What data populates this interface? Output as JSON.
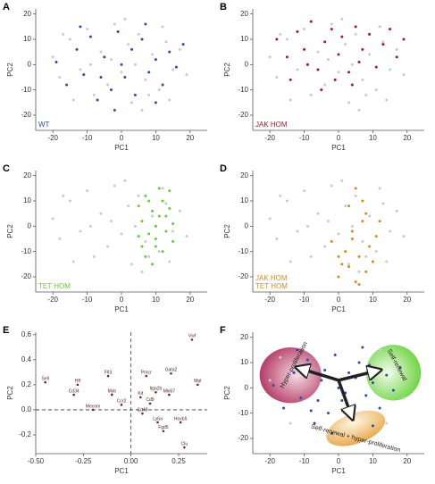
{
  "chart_data": [
    {
      "type": "scatter",
      "panel": "A",
      "xlabel": "PC1",
      "ylabel": "PC2",
      "xlim": [
        -25,
        25
      ],
      "ylim": [
        -26,
        22
      ],
      "xticks": [
        -20,
        -10,
        0,
        10,
        20
      ],
      "yticks": [
        -20,
        -10,
        0,
        10,
        20
      ],
      "legend": "lower left",
      "series": [
        {
          "color": "#c5cad3",
          "x": [
            -20,
            -18,
            -15,
            -12,
            -10,
            -8,
            -6,
            -4,
            -2,
            0,
            2,
            3,
            5,
            7,
            9,
            11,
            13,
            15,
            17,
            19,
            -14,
            -3,
            6,
            12,
            -9,
            1,
            8,
            -17,
            14,
            4
          ],
          "values": [
            3,
            -5,
            10,
            -2,
            14,
            -12,
            5,
            -8,
            16,
            -3,
            8,
            -15,
            12,
            -6,
            4,
            -10,
            9,
            -2,
            6,
            -4,
            -14,
            2,
            -18,
            15,
            0,
            18,
            -12,
            12,
            -14,
            0
          ]
        },
        {
          "name": "WT",
          "color": "#2a4fa8",
          "x": [
            -19,
            -16,
            -13,
            -11,
            -9,
            -7,
            -5,
            -3,
            -1,
            1,
            3,
            4,
            6,
            8,
            10,
            12,
            14,
            16,
            18,
            -12,
            -2,
            7,
            0,
            -6,
            10
          ],
          "values": [
            1,
            -8,
            6,
            -4,
            11,
            -14,
            3,
            -10,
            13,
            -5,
            6,
            -12,
            10,
            -3,
            2,
            -8,
            5,
            -1,
            8,
            15,
            -18,
            16,
            0,
            -5,
            -15
          ]
        }
      ]
    },
    {
      "type": "scatter",
      "panel": "B",
      "xlabel": "PC1",
      "ylabel": "PC2",
      "xlim": [
        -25,
        25
      ],
      "ylim": [
        -26,
        22
      ],
      "xticks": [
        -20,
        -10,
        0,
        10,
        20
      ],
      "yticks": [
        -20,
        -10,
        0,
        10,
        20
      ],
      "legend": "lower left",
      "series": [
        {
          "color": "#c5cad3",
          "x": [
            -20,
            -18,
            -15,
            -12,
            -10,
            -8,
            -6,
            -4,
            -2,
            0,
            2,
            3,
            5,
            7,
            9,
            11,
            13,
            15,
            17,
            19,
            -14,
            -3,
            6,
            12,
            -9,
            1,
            8,
            -17,
            14,
            4
          ],
          "values": [
            3,
            -5,
            10,
            -2,
            14,
            -12,
            5,
            -8,
            16,
            -3,
            8,
            -15,
            12,
            -6,
            4,
            -10,
            9,
            -2,
            6,
            -4,
            -14,
            2,
            -18,
            15,
            0,
            18,
            -12,
            12,
            -14,
            0
          ]
        },
        {
          "name": "JAK HOM",
          "color": "#a3192d",
          "x": [
            -18,
            -15,
            -12,
            -10,
            -8,
            -6,
            -4,
            -2,
            0,
            1,
            3,
            5,
            7,
            9,
            11,
            13,
            15,
            17,
            -14,
            -5,
            4,
            19,
            -9,
            6,
            -1
          ],
          "values": [
            10,
            3,
            13,
            6,
            17,
            -2,
            9,
            14,
            4,
            11,
            -3,
            15,
            6,
            12,
            -1,
            8,
            14,
            3,
            -6,
            -10,
            -8,
            10,
            0,
            1,
            -6
          ]
        }
      ]
    },
    {
      "type": "scatter",
      "panel": "C",
      "xlabel": "PC1",
      "ylabel": "PC2",
      "xlim": [
        -25,
        25
      ],
      "ylim": [
        -26,
        22
      ],
      "xticks": [
        -20,
        -10,
        0,
        10,
        20
      ],
      "yticks": [
        -20,
        -10,
        0,
        10,
        20
      ],
      "legend": "lower left",
      "series": [
        {
          "color": "#c5cad3",
          "x": [
            -20,
            -18,
            -15,
            -12,
            -10,
            -8,
            -6,
            -4,
            -2,
            0,
            2,
            3,
            5,
            7,
            9,
            11,
            13,
            15,
            17,
            19,
            -14,
            -3,
            6,
            12,
            -9,
            1,
            8,
            -17,
            14,
            4
          ],
          "values": [
            3,
            -5,
            10,
            -2,
            14,
            -12,
            5,
            -8,
            16,
            -3,
            8,
            -15,
            12,
            -6,
            4,
            -10,
            9,
            -2,
            6,
            -4,
            -14,
            2,
            -18,
            15,
            0,
            18,
            -12,
            12,
            -14,
            0
          ]
        },
        {
          "name": "TET HOM",
          "color": "#66cc33",
          "x": [
            5,
            6,
            7,
            8,
            9,
            10,
            11,
            12,
            13,
            14,
            15,
            6,
            8,
            10,
            12,
            14,
            7,
            9,
            11,
            13,
            15,
            10,
            5
          ],
          "values": [
            8,
            2,
            12,
            -3,
            6,
            -8,
            4,
            10,
            -2,
            7,
            -6,
            -8,
            10,
            0,
            -10,
            14,
            -12,
            -15,
            15,
            4,
            1,
            -5,
            -4
          ]
        }
      ]
    },
    {
      "type": "scatter",
      "panel": "D",
      "xlabel": "PC1",
      "ylabel": "PC2",
      "xlim": [
        -25,
        25
      ],
      "ylim": [
        -26,
        22
      ],
      "xticks": [
        -20,
        -10,
        0,
        10,
        20
      ],
      "yticks": [
        -20,
        -10,
        0,
        10,
        20
      ],
      "legend": "lower left",
      "series": [
        {
          "color": "#c5cad3",
          "x": [
            -20,
            -18,
            -15,
            -12,
            -10,
            -8,
            -6,
            -4,
            -2,
            0,
            2,
            3,
            5,
            7,
            9,
            11,
            13,
            15,
            17,
            19,
            -14,
            -3,
            6,
            12,
            -9,
            1,
            8,
            -17,
            14,
            4
          ],
          "values": [
            3,
            -5,
            10,
            -2,
            14,
            -12,
            5,
            -8,
            16,
            -3,
            8,
            -15,
            12,
            -6,
            4,
            -10,
            9,
            -2,
            6,
            -4,
            -14,
            2,
            -18,
            15,
            0,
            18,
            -12,
            12,
            -14,
            0
          ]
        },
        {
          "name": [
            "JAK HOM",
            "TET HOM"
          ],
          "color": "#d98a1c",
          "x": [
            0,
            2,
            3,
            4,
            5,
            6,
            7,
            8,
            3,
            5,
            7,
            9,
            10,
            -2,
            0,
            4,
            6,
            8,
            11,
            1,
            12
          ],
          "values": [
            -20,
            -10,
            -16,
            -5,
            -22,
            -12,
            2,
            -18,
            8,
            15,
            10,
            -8,
            -14,
            -6,
            -12,
            -2,
            -23,
            5,
            -4,
            -15,
            2
          ]
        }
      ]
    },
    {
      "type": "scatter",
      "panel": "E",
      "xlabel": "PC1",
      "ylabel": "PC2",
      "xlim": [
        -0.5,
        0.4
      ],
      "ylim": [
        -0.35,
        0.62
      ],
      "xticks": [
        {
          "value": -0.5,
          "label": "-0.50"
        },
        {
          "value": -0.25,
          "label": "-0.25"
        },
        {
          "value": 0,
          "label": "0.00"
        },
        {
          "value": 0.25,
          "label": "0.25"
        }
      ],
      "yticks": [
        -0.2,
        {
          "value": 0,
          "label": "0.0"
        },
        0.2,
        0.4,
        0.6
      ],
      "zero_lines": true,
      "series": [
        {
          "color": "#6b2b2b",
          "labels": [
            "Sell",
            "Hlf",
            "Flt3",
            "Procr",
            "Gata2",
            "Vwf",
            "Mpl",
            "Itga2b",
            "Cd34",
            "Myb",
            "Kit",
            "Mki67",
            "Cd48",
            "Ly6a",
            "Hoxb5",
            "Fgd5",
            "Clu",
            "Mecom",
            "Ccr2",
            "Cd9"
          ],
          "x": [
            -0.45,
            -0.28,
            -0.12,
            0.08,
            0.21,
            0.32,
            0.35,
            0.13,
            -0.3,
            -0.1,
            0.05,
            0.2,
            0.06,
            0.14,
            0.26,
            0.17,
            0.28,
            -0.2,
            -0.05,
            0.1
          ],
          "values": [
            0.22,
            0.2,
            0.27,
            0.27,
            0.29,
            0.56,
            0.2,
            0.14,
            0.12,
            0.12,
            0.1,
            0.12,
            -0.03,
            -0.1,
            -0.1,
            -0.17,
            -0.3,
            0.0,
            0.04,
            0.05
          ]
        }
      ]
    },
    {
      "type": "scatter",
      "panel": "F",
      "xlabel": "PC1",
      "ylabel": "PC2",
      "xlim": [
        -25,
        25
      ],
      "ylim": [
        -26,
        22
      ],
      "xticks": [
        -20,
        -10,
        0,
        10,
        20
      ],
      "yticks": [
        -20,
        -10,
        0,
        10,
        20
      ],
      "annotations": [
        "Hyper-proliferation",
        "Self-renewal",
        "Self-renewal + hyper-proliferation"
      ],
      "series": [
        {
          "color": "#c5cad3",
          "x": [
            -20,
            -17,
            14,
            19,
            -14,
            12
          ],
          "values": [
            3,
            12,
            -14,
            -4,
            -14,
            15
          ]
        },
        {
          "color": "#2a4fa8",
          "x": [
            -19,
            -16,
            -13,
            -11,
            -9,
            -7,
            -5,
            -3,
            -1,
            1,
            3,
            4,
            6,
            8,
            10,
            12,
            14,
            16,
            18,
            -12,
            -2,
            7,
            0,
            -6,
            10,
            -4,
            2,
            5,
            -8,
            9
          ],
          "values": [
            1,
            -8,
            6,
            -4,
            11,
            -14,
            3,
            -10,
            13,
            -5,
            6,
            -12,
            10,
            -3,
            2,
            -8,
            5,
            -1,
            8,
            15,
            -18,
            16,
            0,
            -5,
            -15,
            7,
            -2,
            4,
            -9,
            9
          ]
        }
      ]
    }
  ]
}
